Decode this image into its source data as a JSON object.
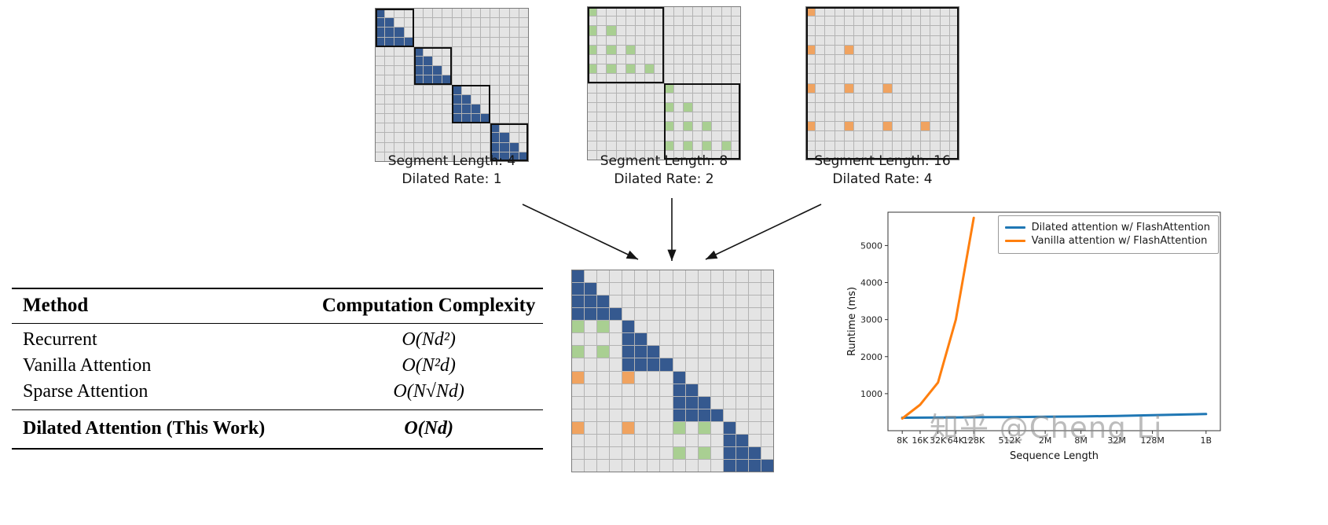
{
  "palette": {
    "blue": "#35598f",
    "green": "#a9cf92",
    "orange": "#f0a360",
    "chart_blue": "#1f77b4",
    "chart_orange": "#ff7f0e"
  },
  "matrices": {
    "left": {
      "size": 16,
      "caption_line1": "Segment Length: 4",
      "caption_line2": "Dilated Rate: 1",
      "layers": [
        {
          "segment": 4,
          "rate": 1,
          "color": "blue",
          "outline": true
        }
      ]
    },
    "middle": {
      "size": 16,
      "caption_line1": "Segment Length: 8",
      "caption_line2": "Dilated Rate: 2",
      "layers": [
        {
          "segment": 8,
          "rate": 2,
          "color": "green",
          "outline": true
        }
      ]
    },
    "right": {
      "size": 16,
      "caption_line1": "Segment Length: 16",
      "caption_line2": "Dilated Rate: 4",
      "layers": [
        {
          "segment": 16,
          "rate": 4,
          "color": "orange",
          "outline": true
        }
      ]
    },
    "combined": {
      "size": 16,
      "layers": [
        {
          "segment": 4,
          "rate": 1,
          "color": "blue",
          "outline": false
        },
        {
          "segment": 8,
          "rate": 2,
          "color": "green",
          "outline": false
        },
        {
          "segment": 16,
          "rate": 4,
          "color": "orange",
          "outline": false
        }
      ]
    }
  },
  "table": {
    "headers": [
      "Method",
      "Computation Complexity"
    ],
    "rows": [
      {
        "method": "Recurrent",
        "complexity": "O(Nd²)"
      },
      {
        "method": "Vanilla Attention",
        "complexity": "O(N²d)"
      },
      {
        "method": "Sparse Attention",
        "complexity": "O(N√Nd)"
      },
      {
        "method": "Dilated Attention (This Work)",
        "complexity": "O(Nd)"
      }
    ]
  },
  "chart_data": {
    "type": "line",
    "title": "",
    "xlabel": "Sequence Length",
    "ylabel": "Runtime (ms)",
    "x_scale": "log",
    "ylim": [
      0,
      5900
    ],
    "y_ticks": [
      1000,
      2000,
      3000,
      4000,
      5000
    ],
    "x_ticks": [
      {
        "value": 8192,
        "label": "8K"
      },
      {
        "value": 16384,
        "label": "16K"
      },
      {
        "value": 32768,
        "label": "32K"
      },
      {
        "value": 65536,
        "label": "64K"
      },
      {
        "value": 131072,
        "label": "128K"
      },
      {
        "value": 524288,
        "label": "512K"
      },
      {
        "value": 2097152,
        "label": "2M"
      },
      {
        "value": 8388608,
        "label": "8M"
      },
      {
        "value": 33554432,
        "label": "32M"
      },
      {
        "value": 134217728,
        "label": "128M"
      },
      {
        "value": 1073741824,
        "label": "1B"
      }
    ],
    "legend_position": "upper right",
    "grid": false,
    "series": [
      {
        "name": "Dilated attention w/ FlashAttention",
        "color_key": "chart_blue",
        "x": [
          8192,
          16384,
          32768,
          65536,
          131072,
          524288,
          2097152,
          8388608,
          33554432,
          134217728,
          1073741824
        ],
        "y": [
          350,
          352,
          355,
          358,
          362,
          368,
          375,
          385,
          400,
          420,
          450
        ]
      },
      {
        "name": "Vanilla attention w/ FlashAttention",
        "color_key": "chart_orange",
        "x": [
          8192,
          16384,
          32768,
          65536,
          131072
        ],
        "y": [
          330,
          700,
          1300,
          3000,
          5750
        ]
      }
    ],
    "watermark": "知乎 @Cheng Li"
  }
}
